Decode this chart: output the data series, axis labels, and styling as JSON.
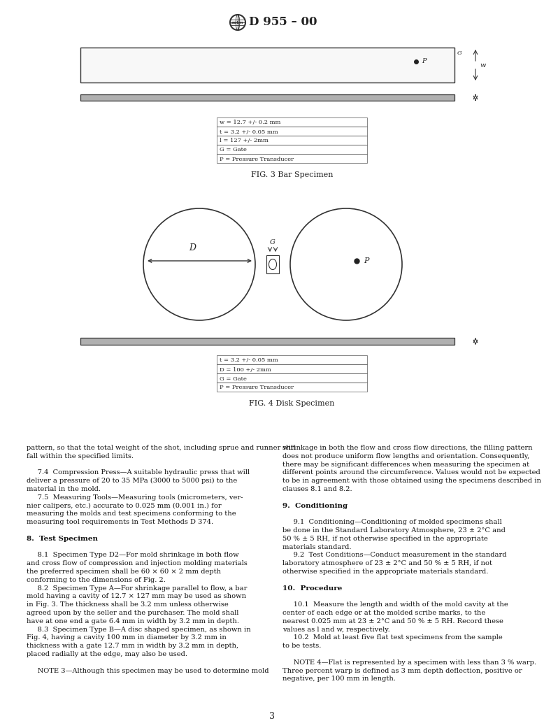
{
  "background_color": "#ffffff",
  "header_text": "D 955 – 00",
  "fig3_legend": [
    "w = 12.7 +/- 0.2 mm",
    "t = 3.2 +/- 0.05 mm",
    "l = 127 +/- 2mm",
    "G = Gate",
    "P = Pressure Transducer"
  ],
  "fig3_caption": "FIG. 3 Bar Specimen",
  "fig4_legend": [
    "t = 3.2 +/- 0.05 mm",
    "D = 100 +/- 2mm",
    "G = Gate",
    "P = Pressure Transducer"
  ],
  "fig4_caption": "FIG. 4 Disk Specimen",
  "body_left": [
    "pattern, so that the total weight of the shot, including sprue and runner will",
    "fall within the specified limits.",
    "",
    "     7.4  Compression Press—A suitable hydraulic press that will",
    "deliver a pressure of 20 to 35 MPa (3000 to 5000 psi) to the",
    "material in the mold.",
    "     7.5  Measuring Tools—Measuring tools (micrometers, ver-",
    "nier calipers, etc.) accurate to 0.025 mm (0.001 in.) for",
    "measuring the molds and test specimens conforming to the",
    "measuring tool requirements in Test Methods D 374.",
    "",
    "8.  Test Specimen",
    "",
    "     8.1  Specimen Type D2—For mold shrinkage in both flow",
    "and cross flow of compression and injection molding materials",
    "the preferred specimen shall be 60 × 60 × 2 mm depth",
    "conforming to the dimensions of Fig. 2.",
    "     8.2  Specimen Type A—For shrinkage parallel to flow, a bar",
    "mold having a cavity of 12.7 × 127 mm may be used as shown",
    "in Fig. 3. The thickness shall be 3.2 mm unless otherwise",
    "agreed upon by the seller and the purchaser. The mold shall",
    "have at one end a gate 6.4 mm in width by 3.2 mm in depth.",
    "     8.3  Specimen Type B—A disc shaped specimen, as shown in",
    "Fig. 4, having a cavity 100 mm in diameter by 3.2 mm in",
    "thickness with a gate 12.7 mm in width by 3.2 mm in depth,",
    "placed radially at the edge, may also be used.",
    "",
    "     NOTE 3—Although this specimen may be used to determine mold"
  ],
  "body_right": [
    "shrinkage in both the flow and cross flow directions, the filling pattern",
    "does not produce uniform flow lengths and orientation. Consequently,",
    "there may be significant differences when measuring the specimen at",
    "different points around the circumference. Values would not be expected",
    "to be in agreement with those obtained using the specimens described in",
    "clauses 8.1 and 8.2.",
    "",
    "9.  Conditioning",
    "",
    "     9.1  Conditioning—Conditioning of molded specimens shall",
    "be done in the Standard Laboratory Atmosphere, 23 ± 2°C and",
    "50 % ± 5 RH, if not otherwise specified in the appropriate",
    "materials standard.",
    "     9.2  Test Conditions—Conduct measurement in the standard",
    "laboratory atmosphere of 23 ± 2°C and 50 % ± 5 RH, if not",
    "otherwise specified in the appropriate materials standard.",
    "",
    "10.  Procedure",
    "",
    "     10.1  Measure the length and width of the mold cavity at the",
    "center of each edge or at the molded scribe marks, to the",
    "nearest 0.025 mm at 23 ± 2°C and 50 % ± 5 RH. Record these",
    "values as l and w, respectively.",
    "     10.2  Mold at least five flat test specimens from the sample",
    "to be tests.",
    "",
    "     NOTE 4—Flat is represented by a specimen with less than 3 % warp.",
    "Three percent warp is defined as 3 mm depth deflection, positive or",
    "negative, per 100 mm in length."
  ],
  "page_number": "3",
  "italic_keywords_left": [
    "Compression Press",
    "Measuring Tools",
    "Specimen Type D2",
    "Specimen Type A",
    "Specimen Type B"
  ],
  "red_refs_left": [
    "D 374",
    "Fig. 2",
    "Fig. 3",
    "Fig. 4"
  ],
  "italic_keywords_right": [
    "Conditioning",
    "Test Conditions"
  ],
  "bold_headers_left": [
    "8.  Test Specimen"
  ],
  "bold_headers_right": [
    "9.  Conditioning",
    "10.  Procedure"
  ]
}
